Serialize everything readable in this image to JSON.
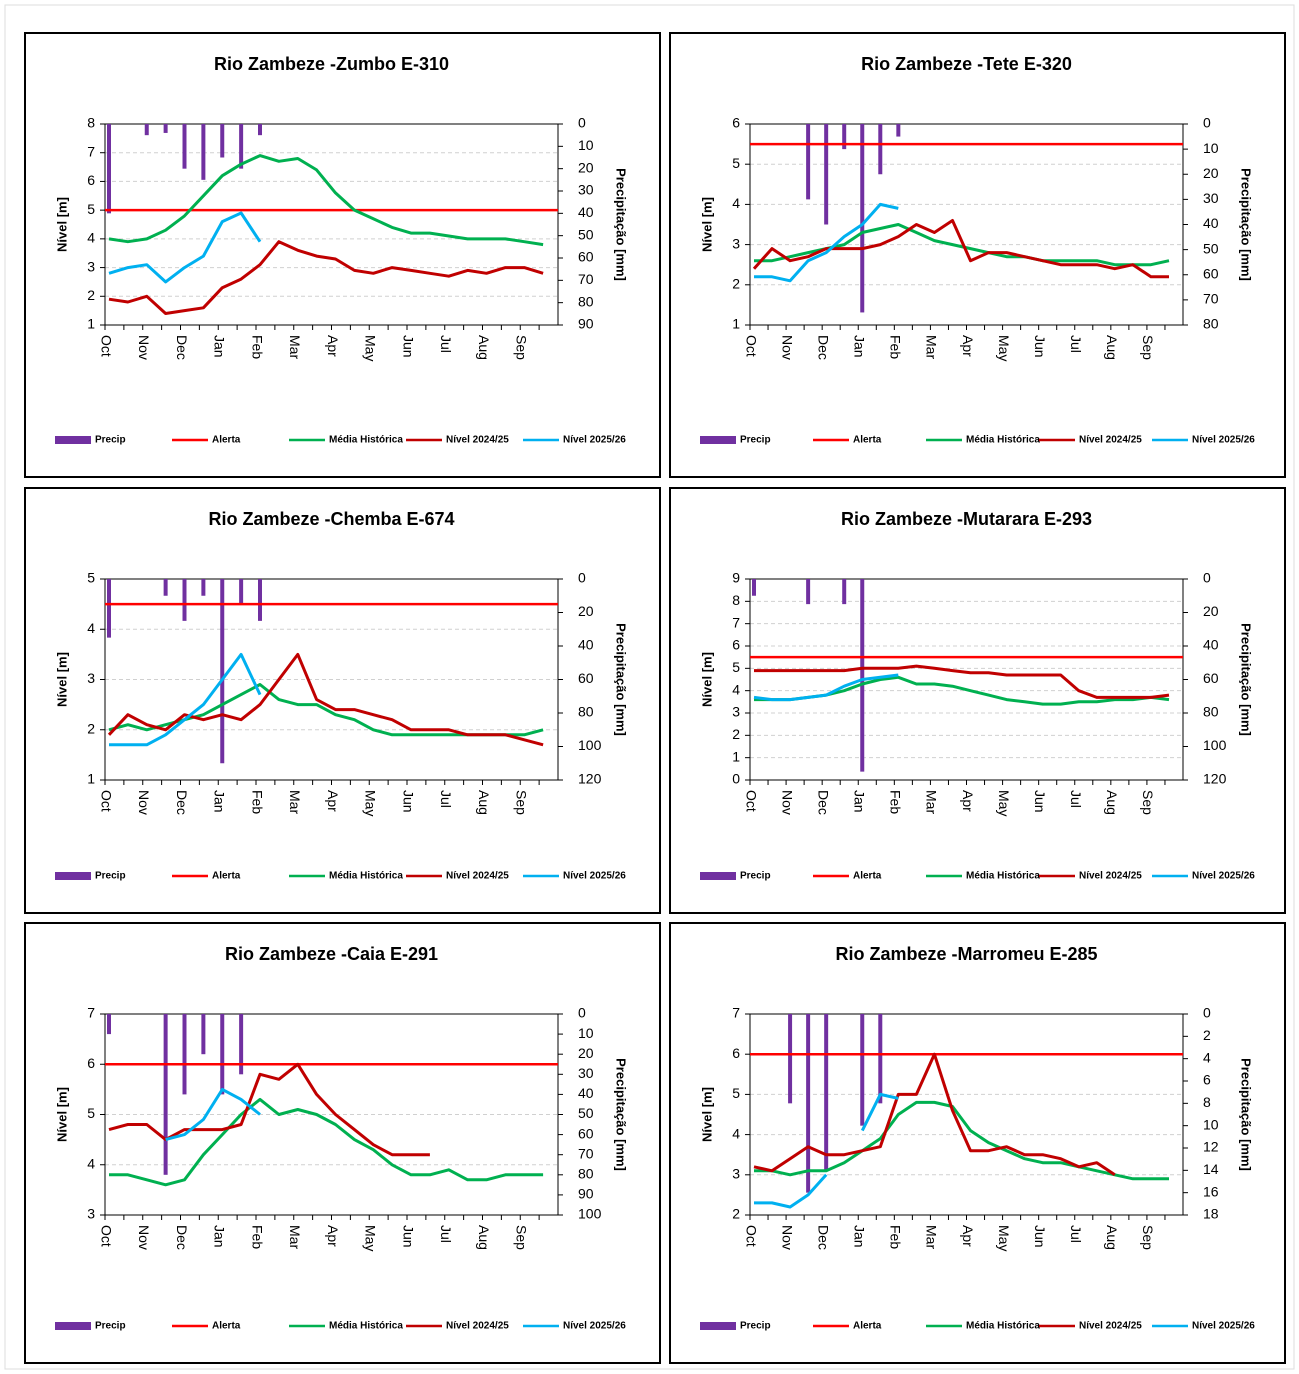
{
  "chart_data": [
    {
      "type": "line",
      "title": "Rio Zambeze -Zumbo E-310",
      "y_label": "Nível [m]",
      "y2_label": "Precipitação [mm]",
      "categories": [
        "Oct",
        null,
        "Nov",
        null,
        "Dec",
        null,
        "Jan",
        null,
        "Feb",
        null,
        "Mar",
        null,
        "Apr",
        null,
        "May",
        null,
        "Jun",
        null,
        "Jul",
        null,
        "Aug",
        null,
        "Sep",
        null
      ],
      "ylim": [
        1,
        8
      ],
      "yticks": [
        1,
        2,
        3,
        4,
        5,
        6,
        7,
        8
      ],
      "y2lim": [
        90,
        0
      ],
      "y2ticks": [
        0,
        10,
        20,
        30,
        40,
        50,
        60,
        70,
        80,
        90
      ],
      "grid": true,
      "series": [
        {
          "name": "Precip",
          "kind": "bar",
          "axis": "y2",
          "color": "#7030a0",
          "values": [
            40,
            0,
            5,
            4,
            20,
            25,
            15,
            20,
            5,
            null,
            null,
            null,
            null,
            null,
            null,
            null,
            null,
            null,
            null,
            null,
            null,
            null,
            null,
            null
          ]
        },
        {
          "name": "Alerta",
          "kind": "hline",
          "color": "#ff0000",
          "value": 5
        },
        {
          "name": "Média Histórica",
          "kind": "line",
          "color": "#00b050",
          "values": [
            4.0,
            3.9,
            4.0,
            4.3,
            4.8,
            5.5,
            6.2,
            6.6,
            6.9,
            6.7,
            6.8,
            6.4,
            5.6,
            5.0,
            4.7,
            4.4,
            4.2,
            4.2,
            4.1,
            4.0,
            4.0,
            4.0,
            3.9,
            3.8
          ]
        },
        {
          "name": "Nível 2024/25",
          "kind": "line",
          "color": "#c00000",
          "values": [
            1.9,
            1.8,
            2.0,
            1.4,
            1.5,
            1.6,
            2.3,
            2.6,
            3.1,
            3.9,
            3.6,
            3.4,
            3.3,
            2.9,
            2.8,
            3.0,
            2.9,
            2.8,
            2.7,
            2.9,
            2.8,
            3.0,
            3.0,
            2.8
          ]
        },
        {
          "name": "Nível 2025/26",
          "kind": "line",
          "color": "#00b0f0",
          "values": [
            2.8,
            3.0,
            3.1,
            2.5,
            3.0,
            3.4,
            4.6,
            4.9,
            3.9,
            null,
            null,
            null,
            null,
            null,
            null,
            null,
            null,
            null,
            null,
            null,
            null,
            null,
            null,
            null
          ]
        }
      ]
    },
    {
      "type": "line",
      "title": "Rio Zambeze -Tete E-320",
      "y_label": "Nível [m]",
      "y2_label": "Precipitação [mm]",
      "categories": [
        "Oct",
        null,
        "Nov",
        null,
        "Dec",
        null,
        "Jan",
        null,
        "Feb",
        null,
        "Mar",
        null,
        "Apr",
        null,
        "May",
        null,
        "Jun",
        null,
        "Jul",
        null,
        "Aug",
        null,
        "Sep",
        null
      ],
      "ylim": [
        1,
        6
      ],
      "yticks": [
        1,
        2,
        3,
        4,
        5,
        6
      ],
      "y2lim": [
        80,
        0
      ],
      "y2ticks": [
        0,
        10,
        20,
        30,
        40,
        50,
        60,
        70,
        80
      ],
      "grid": true,
      "series": [
        {
          "name": "Precip",
          "kind": "bar",
          "axis": "y2",
          "color": "#7030a0",
          "values": [
            0,
            0,
            0,
            30,
            40,
            10,
            75,
            20,
            5,
            null,
            null,
            null,
            null,
            null,
            null,
            null,
            null,
            null,
            null,
            null,
            null,
            null,
            null,
            null
          ]
        },
        {
          "name": "Alerta",
          "kind": "hline",
          "color": "#ff0000",
          "value": 5.5
        },
        {
          "name": "Média Histórica",
          "kind": "line",
          "color": "#00b050",
          "values": [
            2.6,
            2.6,
            2.7,
            2.8,
            2.9,
            3.0,
            3.3,
            3.4,
            3.5,
            3.3,
            3.1,
            3.0,
            2.9,
            2.8,
            2.7,
            2.7,
            2.6,
            2.6,
            2.6,
            2.6,
            2.5,
            2.5,
            2.5,
            2.6
          ]
        },
        {
          "name": "Nível 2024/25",
          "kind": "line",
          "color": "#c00000",
          "values": [
            2.4,
            2.9,
            2.6,
            2.7,
            2.9,
            2.9,
            2.9,
            3.0,
            3.2,
            3.5,
            3.3,
            3.6,
            2.6,
            2.8,
            2.8,
            2.7,
            2.6,
            2.5,
            2.5,
            2.5,
            2.4,
            2.5,
            2.2,
            2.2
          ]
        },
        {
          "name": "Nível 2025/26",
          "kind": "line",
          "color": "#00b0f0",
          "values": [
            2.2,
            2.2,
            2.1,
            2.6,
            2.8,
            3.2,
            3.5,
            4.0,
            3.9,
            null,
            null,
            null,
            null,
            null,
            null,
            null,
            null,
            null,
            null,
            null,
            null,
            null,
            null,
            null
          ]
        }
      ]
    },
    {
      "type": "line",
      "title": "Rio Zambeze -Chemba E-674",
      "y_label": "Nível [m]",
      "y2_label": "Precipitação [mm]",
      "categories": [
        "Oct",
        null,
        "Nov",
        null,
        "Dec",
        null,
        "Jan",
        null,
        "Feb",
        null,
        "Mar",
        null,
        "Apr",
        null,
        "May",
        null,
        "Jun",
        null,
        "Jul",
        null,
        "Aug",
        null,
        "Sep",
        null
      ],
      "ylim": [
        1,
        5
      ],
      "yticks": [
        1,
        2,
        3,
        4,
        5
      ],
      "y2lim": [
        120,
        0
      ],
      "y2ticks": [
        0,
        20,
        40,
        60,
        80,
        100,
        120
      ],
      "grid": true,
      "series": [
        {
          "name": "Precip",
          "kind": "bar",
          "axis": "y2",
          "color": "#7030a0",
          "values": [
            35,
            0,
            0,
            10,
            25,
            10,
            110,
            15,
            25,
            null,
            null,
            null,
            null,
            null,
            null,
            null,
            null,
            null,
            null,
            null,
            null,
            null,
            null,
            null
          ]
        },
        {
          "name": "Alerta",
          "kind": "hline",
          "color": "#ff0000",
          "value": 4.5
        },
        {
          "name": "Média Histórica",
          "kind": "line",
          "color": "#00b050",
          "values": [
            2.0,
            2.1,
            2.0,
            2.1,
            2.2,
            2.3,
            2.5,
            2.7,
            2.9,
            2.6,
            2.5,
            2.5,
            2.3,
            2.2,
            2.0,
            1.9,
            1.9,
            1.9,
            1.9,
            1.9,
            1.9,
            1.9,
            1.9,
            2.0
          ]
        },
        {
          "name": "Nível 2024/25",
          "kind": "line",
          "color": "#c00000",
          "values": [
            1.9,
            2.3,
            2.1,
            2.0,
            2.3,
            2.2,
            2.3,
            2.2,
            2.5,
            3.0,
            3.5,
            2.6,
            2.4,
            2.4,
            2.3,
            2.2,
            2.0,
            2.0,
            2.0,
            1.9,
            1.9,
            1.9,
            1.8,
            1.7
          ]
        },
        {
          "name": "Nível 2025/26",
          "kind": "line",
          "color": "#00b0f0",
          "values": [
            1.7,
            1.7,
            1.7,
            1.9,
            2.2,
            2.5,
            3.0,
            3.5,
            2.7,
            null,
            null,
            null,
            null,
            null,
            null,
            null,
            null,
            null,
            null,
            null,
            null,
            null,
            null,
            null
          ]
        }
      ]
    },
    {
      "type": "line",
      "title": "Rio Zambeze -Mutarara E-293",
      "y_label": "Nível [m]",
      "y2_label": "Precipitação [mm]",
      "categories": [
        "Oct",
        null,
        "Nov",
        null,
        "Dec",
        null,
        "Jan",
        null,
        "Feb",
        null,
        "Mar",
        null,
        "Apr",
        null,
        "May",
        null,
        "Jun",
        null,
        "Jul",
        null,
        "Aug",
        null,
        "Sep",
        null
      ],
      "ylim": [
        0,
        9
      ],
      "yticks": [
        0,
        1,
        2,
        3,
        4,
        5,
        6,
        7,
        8,
        9
      ],
      "y2lim": [
        120,
        0
      ],
      "y2ticks": [
        0,
        20,
        40,
        60,
        80,
        100,
        120
      ],
      "grid": true,
      "series": [
        {
          "name": "Precip",
          "kind": "bar",
          "axis": "y2",
          "color": "#7030a0",
          "values": [
            10,
            0,
            0,
            15,
            0,
            15,
            115,
            0,
            null,
            null,
            null,
            null,
            null,
            null,
            null,
            null,
            null,
            null,
            null,
            null,
            null,
            null,
            null,
            null
          ]
        },
        {
          "name": "Alerta",
          "kind": "hline",
          "color": "#ff0000",
          "value": 5.5
        },
        {
          "name": "Média Histórica",
          "kind": "line",
          "color": "#00b050",
          "values": [
            3.6,
            3.6,
            3.6,
            3.7,
            3.8,
            4.0,
            4.3,
            4.5,
            4.6,
            4.3,
            4.3,
            4.2,
            4.0,
            3.8,
            3.6,
            3.5,
            3.4,
            3.4,
            3.5,
            3.5,
            3.6,
            3.6,
            3.7,
            3.6
          ]
        },
        {
          "name": "Nível 2024/25",
          "kind": "line",
          "color": "#c00000",
          "values": [
            4.9,
            4.9,
            4.9,
            4.9,
            4.9,
            4.9,
            5.0,
            5.0,
            5.0,
            5.1,
            5.0,
            4.9,
            4.8,
            4.8,
            4.7,
            4.7,
            4.7,
            4.7,
            4.0,
            3.7,
            3.7,
            3.7,
            3.7,
            3.8
          ]
        },
        {
          "name": "Nível 2025/26",
          "kind": "line",
          "color": "#00b0f0",
          "values": [
            3.7,
            3.6,
            3.6,
            3.7,
            3.8,
            4.2,
            4.5,
            4.6,
            4.7,
            null,
            null,
            null,
            null,
            null,
            null,
            null,
            null,
            null,
            null,
            null,
            null,
            null,
            null,
            null
          ]
        }
      ]
    },
    {
      "type": "line",
      "title": "Rio Zambeze -Caia E-291",
      "y_label": "Nível [m]",
      "y2_label": "Precipitação [mm]",
      "categories": [
        "Oct",
        null,
        "Nov",
        null,
        "Dec",
        null,
        "Jan",
        null,
        "Feb",
        null,
        "Mar",
        null,
        "Apr",
        null,
        "May",
        null,
        "Jun",
        null,
        "Jul",
        null,
        "Aug",
        null,
        "Sep",
        null
      ],
      "ylim": [
        3,
        7
      ],
      "yticks": [
        3,
        4,
        5,
        6,
        7
      ],
      "y2lim": [
        100,
        0
      ],
      "y2ticks": [
        0,
        10,
        20,
        30,
        40,
        50,
        60,
        70,
        80,
        90,
        100
      ],
      "grid": true,
      "series": [
        {
          "name": "Precip",
          "kind": "bar",
          "axis": "y2",
          "color": "#7030a0",
          "values": [
            10,
            0,
            0,
            80,
            40,
            20,
            40,
            30,
            null,
            null,
            null,
            null,
            null,
            null,
            null,
            null,
            null,
            null,
            null,
            null,
            null,
            null,
            null,
            null
          ]
        },
        {
          "name": "Alerta",
          "kind": "hline",
          "color": "#ff0000",
          "value": 6
        },
        {
          "name": "Média Histórica",
          "kind": "line",
          "color": "#00b050",
          "values": [
            3.8,
            3.8,
            3.7,
            3.6,
            3.7,
            4.2,
            4.6,
            5.0,
            5.3,
            5.0,
            5.1,
            5.0,
            4.8,
            4.5,
            4.3,
            4.0,
            3.8,
            3.8,
            3.9,
            3.7,
            3.7,
            3.8,
            3.8,
            3.8
          ]
        },
        {
          "name": "Nível 2024/25",
          "kind": "line",
          "color": "#c00000",
          "values": [
            4.7,
            4.8,
            4.8,
            4.5,
            4.7,
            4.7,
            4.7,
            4.8,
            5.8,
            5.7,
            6.0,
            5.4,
            5.0,
            4.7,
            4.4,
            4.2,
            4.2,
            4.2,
            null,
            null,
            null,
            null,
            null,
            null
          ]
        },
        {
          "name": "Nível 2025/26",
          "kind": "line",
          "color": "#00b0f0",
          "values": [
            null,
            null,
            null,
            4.5,
            4.6,
            4.9,
            5.5,
            5.3,
            5.0,
            null,
            null,
            null,
            null,
            null,
            null,
            null,
            null,
            null,
            null,
            null,
            null,
            null,
            null,
            null
          ]
        }
      ]
    },
    {
      "type": "line",
      "title": "Rio Zambeze -Marromeu E-285",
      "y_label": "Nível [m]",
      "y2_label": "Precipitação [mm]",
      "categories": [
        "Oct",
        null,
        "Nov",
        null,
        "Dec",
        null,
        "Jan",
        null,
        "Feb",
        null,
        "Mar",
        null,
        "Apr",
        null,
        "May",
        null,
        "Jun",
        null,
        "Jul",
        null,
        "Aug",
        null,
        "Sep",
        null
      ],
      "ylim": [
        2,
        7
      ],
      "yticks": [
        2,
        3,
        4,
        5,
        6,
        7
      ],
      "y2lim": [
        18,
        0
      ],
      "y2ticks": [
        0,
        2,
        4,
        6,
        8,
        10,
        12,
        14,
        16,
        18
      ],
      "grid": true,
      "series": [
        {
          "name": "Precip",
          "kind": "bar",
          "axis": "y2",
          "color": "#7030a0",
          "values": [
            0,
            0,
            8,
            16,
            14,
            0,
            10,
            8,
            null,
            null,
            null,
            null,
            null,
            null,
            null,
            null,
            null,
            null,
            null,
            null,
            null,
            null,
            null,
            null
          ]
        },
        {
          "name": "Alerta",
          "kind": "hline",
          "color": "#ff0000",
          "value": 6
        },
        {
          "name": "Média Histórica",
          "kind": "line",
          "color": "#00b050",
          "values": [
            3.1,
            3.1,
            3.0,
            3.1,
            3.1,
            3.3,
            3.6,
            3.9,
            4.5,
            4.8,
            4.8,
            4.7,
            4.1,
            3.8,
            3.6,
            3.4,
            3.3,
            3.3,
            3.2,
            3.1,
            3.0,
            2.9,
            2.9,
            2.9
          ]
        },
        {
          "name": "Nível 2024/25",
          "kind": "line",
          "color": "#c00000",
          "values": [
            3.2,
            3.1,
            3.4,
            3.7,
            3.5,
            3.5,
            3.6,
            3.7,
            5.0,
            5.0,
            6.0,
            4.6,
            3.6,
            3.6,
            3.7,
            3.5,
            3.5,
            3.4,
            3.2,
            3.3,
            3.0,
            null,
            3.1,
            null
          ]
        },
        {
          "name": "Nível 2025/26",
          "kind": "line",
          "color": "#00b0f0",
          "values": [
            2.3,
            2.3,
            2.2,
            2.5,
            3.0,
            null,
            4.1,
            5.0,
            4.9,
            null,
            null,
            null,
            null,
            null,
            null,
            null,
            null,
            null,
            null,
            null,
            null,
            null,
            null,
            null
          ]
        }
      ]
    }
  ]
}
